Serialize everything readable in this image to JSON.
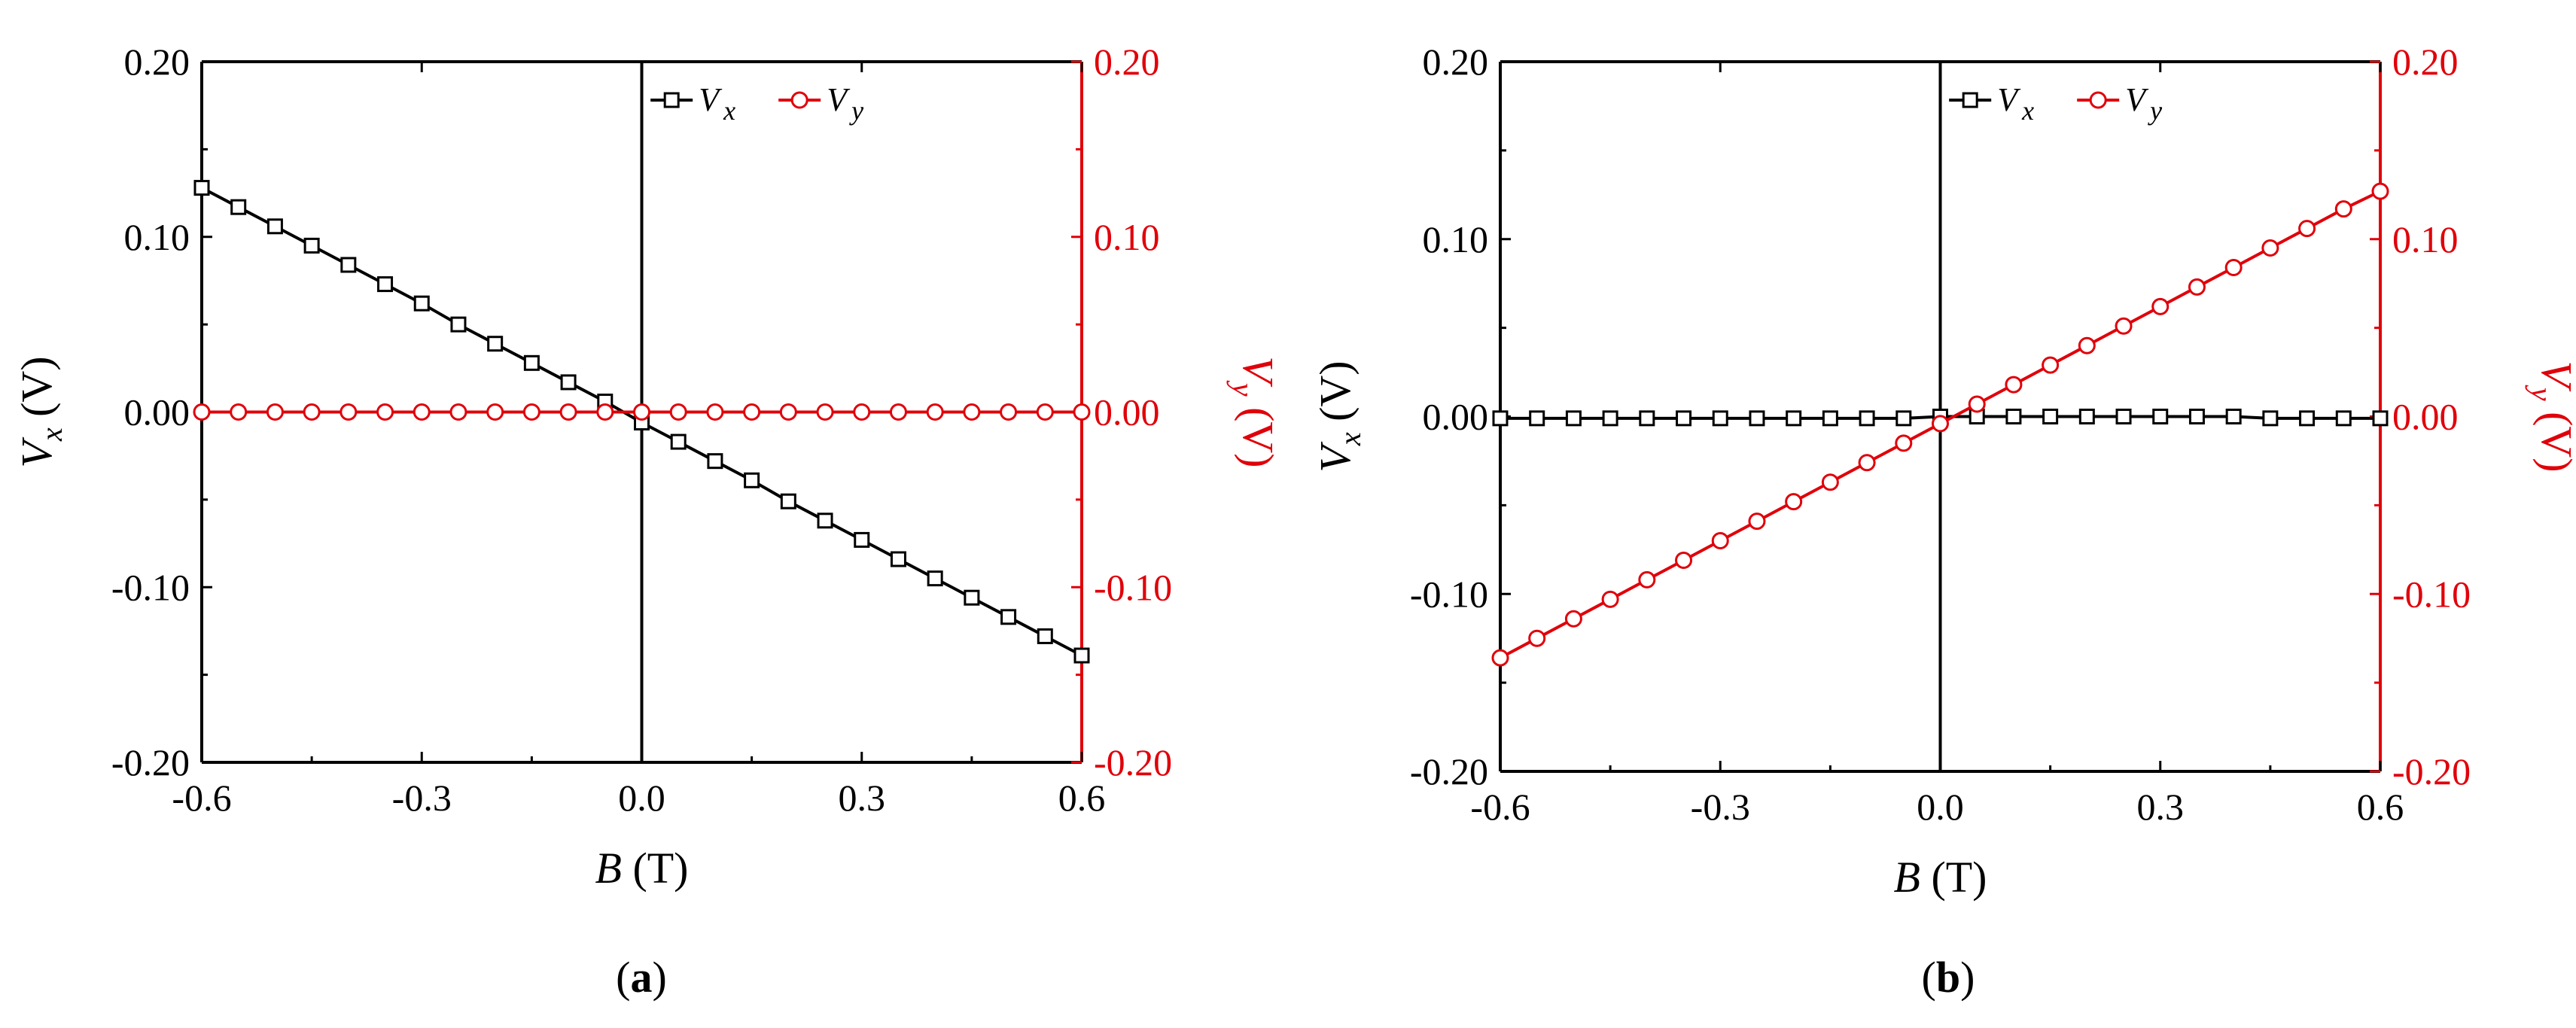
{
  "chart_data": [
    {
      "type": "line",
      "caption": "(a)",
      "caption_letter": "a",
      "xlabel": {
        "var": "B",
        "unit": " (T)"
      },
      "ylabel_left": {
        "var": "V",
        "sub": "x",
        "unit": " (V)"
      },
      "ylabel_right": {
        "var": "V",
        "sub": "y",
        "unit": " (V)"
      },
      "xlim": [
        -0.6,
        0.6
      ],
      "ylim": [
        -0.2,
        0.2
      ],
      "xticks": [
        "-0.6",
        "-0.3",
        "0.0",
        "0.3",
        "0.6"
      ],
      "yticks": [
        "-0.20",
        "-0.10",
        "0.00",
        "0.10",
        "0.20"
      ],
      "legend_position": "top-right",
      "grid": false,
      "x": [
        -0.6,
        -0.55,
        -0.5,
        -0.45,
        -0.4,
        -0.35,
        -0.3,
        -0.25,
        -0.2,
        -0.15,
        -0.1,
        -0.05,
        0.0,
        0.05,
        0.1,
        0.15,
        0.2,
        0.25,
        0.3,
        0.35,
        0.4,
        0.45,
        0.5,
        0.55,
        0.6
      ],
      "series": [
        {
          "name": "Vx",
          "label_var": "V",
          "label_sub": "x",
          "axis": "left",
          "marker": "square",
          "color": "#000000",
          "values": [
            0.128,
            0.117,
            0.106,
            0.095,
            0.084,
            0.073,
            0.062,
            0.05,
            0.039,
            0.028,
            0.017,
            0.006,
            -0.006,
            -0.017,
            -0.028,
            -0.039,
            -0.051,
            -0.062,
            -0.073,
            -0.084,
            -0.095,
            -0.106,
            -0.117,
            -0.128,
            -0.139
          ]
        },
        {
          "name": "Vy",
          "label_var": "V",
          "label_sub": "y",
          "axis": "right",
          "marker": "circle",
          "color": "#e0000a",
          "values": [
            0.0,
            0.0,
            0.0,
            0.0,
            0.0,
            0.0,
            0.0,
            0.0,
            0.0,
            0.0,
            0.0,
            0.0,
            0.0,
            0.0,
            0.0,
            0.0,
            0.0,
            0.0,
            0.0,
            0.0,
            0.0,
            0.0,
            0.0,
            0.0,
            0.0
          ]
        }
      ]
    },
    {
      "type": "line",
      "caption": "(b)",
      "caption_letter": "b",
      "xlabel": {
        "var": "B",
        "unit": " (T)"
      },
      "ylabel_left": {
        "var": "V",
        "sub": "x",
        "unit": " (V)"
      },
      "ylabel_right": {
        "var": "V",
        "sub": "y",
        "unit": " (V)"
      },
      "xlim": [
        -0.6,
        0.6
      ],
      "ylim": [
        -0.2,
        0.2
      ],
      "xticks": [
        "-0.6",
        "-0.3",
        "0.0",
        "0.3",
        "0.6"
      ],
      "yticks": [
        "-0.20",
        "-0.10",
        "0.00",
        "0.10",
        "0.20"
      ],
      "legend_position": "top-right",
      "grid": false,
      "x": [
        -0.6,
        -0.55,
        -0.5,
        -0.45,
        -0.4,
        -0.35,
        -0.3,
        -0.25,
        -0.2,
        -0.15,
        -0.1,
        -0.05,
        0.0,
        0.05,
        0.1,
        0.15,
        0.2,
        0.25,
        0.3,
        0.35,
        0.4,
        0.45,
        0.5,
        0.55,
        0.6
      ],
      "series": [
        {
          "name": "Vx",
          "label_var": "V",
          "label_sub": "x",
          "axis": "left",
          "marker": "square",
          "color": "#000000",
          "values": [
            -0.001,
            -0.001,
            -0.001,
            -0.001,
            -0.001,
            -0.001,
            -0.001,
            -0.001,
            -0.001,
            -0.001,
            -0.001,
            -0.001,
            0.0,
            0.0,
            0.0,
            0.0,
            0.0,
            0.0,
            0.0,
            0.0,
            0.0,
            -0.001,
            -0.001,
            -0.001,
            -0.001
          ]
        },
        {
          "name": "Vy",
          "label_var": "V",
          "label_sub": "y",
          "axis": "right",
          "marker": "circle",
          "color": "#e0000a",
          "values": [
            -0.136,
            -0.125,
            -0.114,
            -0.103,
            -0.092,
            -0.081,
            -0.07,
            -0.059,
            -0.048,
            -0.037,
            -0.026,
            -0.015,
            -0.004,
            0.007,
            0.018,
            0.029,
            0.04,
            0.051,
            0.062,
            0.073,
            0.084,
            0.095,
            0.106,
            0.117,
            0.127
          ]
        }
      ]
    }
  ]
}
